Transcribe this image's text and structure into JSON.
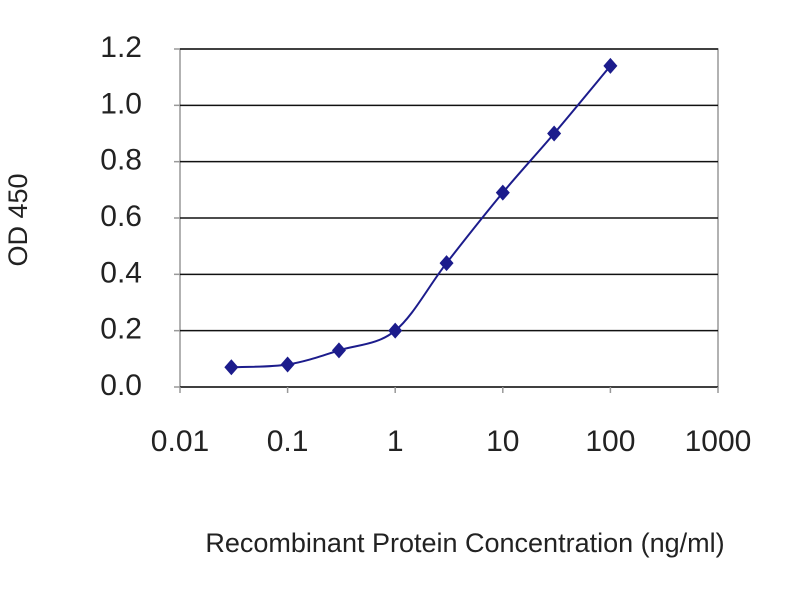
{
  "chart_data": {
    "type": "line",
    "x_label": "Recombinant Protein Concentration (ng/ml)",
    "y_label": "OD 450",
    "x": [
      0.03,
      0.1,
      0.3,
      1,
      3,
      10,
      30,
      100
    ],
    "series": [
      {
        "color": "#1c1c8c",
        "values": [
          0.07,
          0.08,
          0.13,
          0.2,
          0.44,
          0.69,
          0.9,
          1.14
        ]
      }
    ],
    "xscale": "log",
    "xlim": [
      0.01,
      1000
    ],
    "xticks": [
      0.01,
      0.1,
      1,
      10,
      100,
      1000
    ],
    "ylim": [
      0,
      1.2
    ],
    "yticks": [
      {
        "value": 0,
        "label": "0.0"
      },
      0.2,
      0.4,
      0.6,
      0.8,
      {
        "value": 1,
        "label": "1.0"
      },
      1.2
    ],
    "grid": true
  }
}
